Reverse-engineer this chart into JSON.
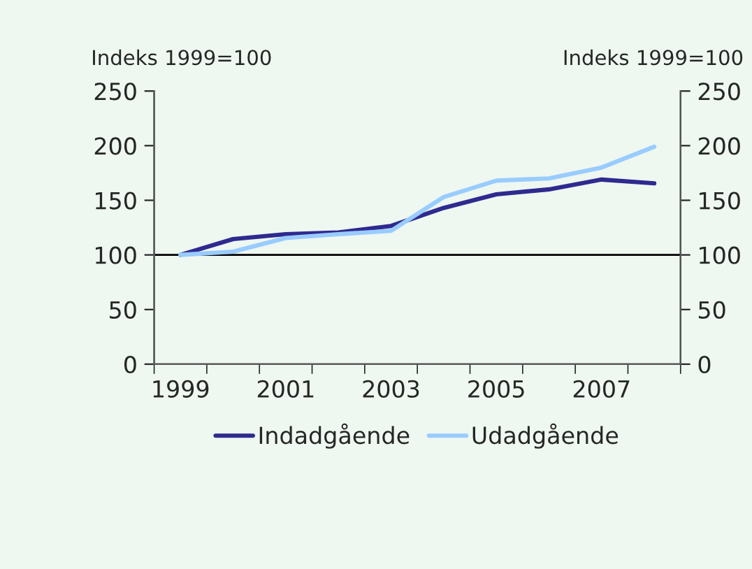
{
  "chart_data": {
    "type": "line",
    "ylabel": "Indeks 1999=100",
    "y2label": "Indeks 1999=100",
    "categories": [
      "1999",
      null,
      "2001",
      null,
      "2003",
      null,
      "2005",
      null,
      "2007",
      null
    ],
    "series": [
      {
        "name": "Indadgående",
        "color": "#2e2a8f",
        "values": [
          100,
          114.5,
          119,
          120.5,
          126.5,
          143,
          155.5,
          160,
          169,
          165.5
        ]
      },
      {
        "name": "Udadgående",
        "color": "#99ccff",
        "values": [
          100,
          103,
          115.5,
          119,
          122,
          153,
          168,
          170,
          180,
          199
        ]
      }
    ],
    "ylim": [
      0,
      250
    ],
    "yticks": [
      0,
      50,
      100,
      150,
      200,
      250
    ],
    "y2lim": [
      0,
      250
    ],
    "y2ticks": [
      0,
      50,
      100,
      150,
      200,
      250
    ],
    "ref_lines": [
      {
        "axis": "y",
        "value": 100,
        "color": "#000000"
      }
    ],
    "grid": false,
    "legend": "bottom",
    "marker": "none",
    "line_style": "solid"
  }
}
